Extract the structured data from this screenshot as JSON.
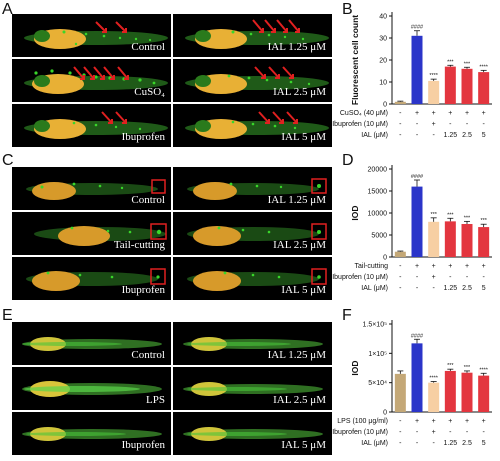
{
  "figure": {
    "panel_letters": [
      "A",
      "B",
      "C",
      "D",
      "E",
      "F"
    ],
    "section_A": {
      "captions": [
        "Control",
        "IAL 1.25 μM",
        "CuSO₄",
        "IAL 2.5 μM",
        "Ibuprofen",
        "IAL 5 μM"
      ]
    },
    "section_C": {
      "captions": [
        "Control",
        "IAL 1.25 μM",
        "Tail-cutting",
        "IAL 2.5 μM",
        "Ibuprofen",
        "IAL 5 μM"
      ]
    },
    "section_E": {
      "captions": [
        "Control",
        "IAL 1.25 μM",
        "LPS",
        "IAL 2.5 μM",
        "Ibuprofen",
        "IAL 5 μM"
      ]
    },
    "colors": {
      "control": "#c4a877",
      "model": "#2b35c9",
      "ibuprofen": "#f7cfa3",
      "ial": "#e3363f",
      "panel_bg": "#000000",
      "fluorescence": "#39d62a",
      "yolk": "#e8b035",
      "arrow": "#e02020",
      "box": "#e02020"
    }
  },
  "chart_data": [
    {
      "type": "bar",
      "panel": "B",
      "ylabel": "Fluorescent cell count",
      "ylim": [
        0,
        40
      ],
      "yticks": [
        "0",
        "10",
        "20",
        "30",
        "40"
      ],
      "values": [
        1,
        31,
        10.5,
        17,
        16,
        14.5
      ],
      "errors": [
        0.3,
        2.3,
        0.8,
        0.6,
        0.7,
        0.8
      ],
      "significance": [
        "",
        "####",
        "****",
        "***",
        "***",
        "****"
      ],
      "treatment_rows": [
        {
          "label": "CuSO₄ (40 μM)",
          "marks": [
            "-",
            "+",
            "+",
            "+",
            "+",
            "+"
          ]
        },
        {
          "label": "Ibuprofen (10 μM)",
          "marks": [
            "-",
            "-",
            "+",
            "-",
            "-",
            "-"
          ]
        },
        {
          "label": "IAL (μM)",
          "marks": [
            "-",
            "-",
            "-",
            "1.25",
            "2.5",
            "5"
          ]
        }
      ]
    },
    {
      "type": "bar",
      "panel": "D",
      "ylabel": "IOD",
      "ylim": [
        0,
        20000
      ],
      "yticks": [
        "0",
        "5000",
        "10000",
        "15000",
        "20000"
      ],
      "values": [
        1200,
        16000,
        8000,
        8100,
        7500,
        6800
      ],
      "errors": [
        150,
        1500,
        900,
        700,
        600,
        650
      ],
      "significance": [
        "",
        "####",
        "***",
        "***",
        "***",
        "***"
      ],
      "treatment_rows": [
        {
          "label": "Tail-cutting",
          "marks": [
            "-",
            "+",
            "+",
            "+",
            "+",
            "+"
          ]
        },
        {
          "label": "Ibuprofen (10 μM)",
          "marks": [
            "-",
            "-",
            "+",
            "-",
            "-",
            "-"
          ]
        },
        {
          "label": "IAL (μM)",
          "marks": [
            "-",
            "-",
            "-",
            "1.25",
            "2.5",
            "5"
          ]
        }
      ]
    },
    {
      "type": "bar",
      "panel": "F",
      "ylabel": "IOD",
      "ylim": [
        0,
        150000
      ],
      "yticks": [
        "0",
        "5×10⁴",
        "1×10⁵",
        "1.5×10⁵"
      ],
      "values": [
        65000,
        117000,
        50000,
        70000,
        67000,
        62000
      ],
      "errors": [
        5000,
        7000,
        2000,
        3000,
        3000,
        4000
      ],
      "significance": [
        "",
        "####",
        "****",
        "***",
        "***",
        "****"
      ],
      "treatment_rows": [
        {
          "label": "LPS (100 μg/ml)",
          "marks": [
            "-",
            "+",
            "+",
            "+",
            "+",
            "+"
          ]
        },
        {
          "label": "Ibuprofen (10 μM)",
          "marks": [
            "-",
            "-",
            "+",
            "-",
            "-",
            "-"
          ]
        },
        {
          "label": "IAL (μM)",
          "marks": [
            "-",
            "-",
            "-",
            "1.25",
            "2.5",
            "5"
          ]
        }
      ]
    }
  ]
}
